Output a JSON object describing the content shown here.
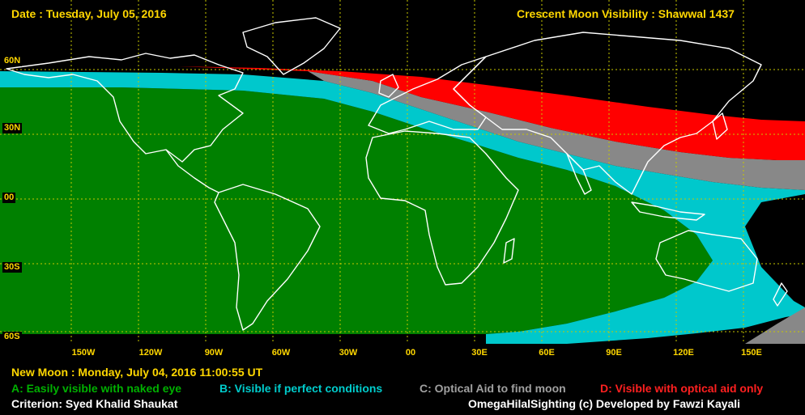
{
  "header": {
    "date": "Date : Tuesday, July 05, 2016",
    "title": "Crescent Moon Visibility : Shawwal  1437"
  },
  "map": {
    "lat_labels": [
      "60N",
      "30N",
      "00",
      "30S",
      "60S"
    ],
    "lon_labels": [
      "150W",
      "120W",
      "90W",
      "60W",
      "30W",
      "00",
      "30E",
      "60E",
      "90E",
      "120E",
      "150E"
    ],
    "colors": {
      "zone_a": "#008000",
      "zone_b": "#00cccc",
      "zone_c": "#888888",
      "zone_d": "#ff0000",
      "none": "#000000",
      "coast": "#ffffff",
      "grid": "#c8c800",
      "label": "#ffd700"
    }
  },
  "footer": {
    "new_moon": "New Moon : Monday, July 04, 2016  11:00:55  UT",
    "legend": [
      {
        "key": "A",
        "text": "A: Easily visible with naked eye",
        "color": "#00b000"
      },
      {
        "key": "B",
        "text": "B: Visible if perfect conditions",
        "color": "#00cccc"
      },
      {
        "key": "C",
        "text": "C: Optical Aid to find moon",
        "color": "#a0a0a0"
      },
      {
        "key": "D",
        "text": "D: Visible with optical aid only",
        "color": "#ff2020"
      }
    ],
    "criterion": "Criterion: Syed Khalid Shaukat",
    "credits": "OmegaHilalSighting  (c)  Developed by Fawzi Kayali"
  }
}
